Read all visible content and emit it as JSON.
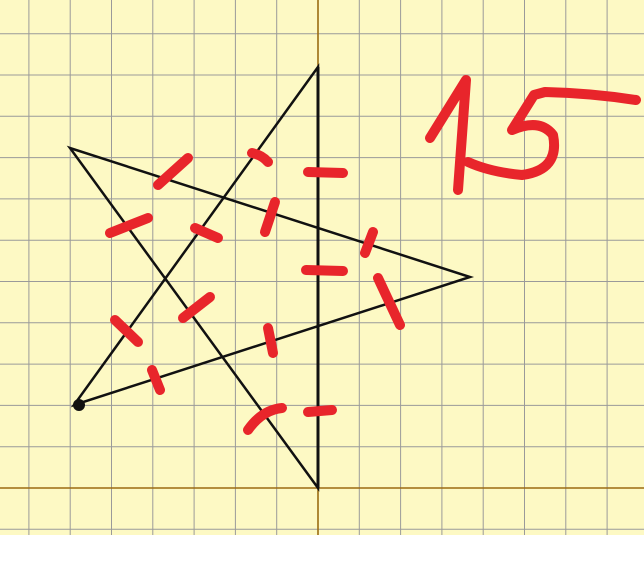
{
  "annotation": {
    "handwritten_text": "15"
  },
  "colors": {
    "paper": "#fdf9c4",
    "grid": "#9a9a9a",
    "axis": "#9b6b12",
    "shape": "#111111",
    "marks": "#e8252b"
  }
}
